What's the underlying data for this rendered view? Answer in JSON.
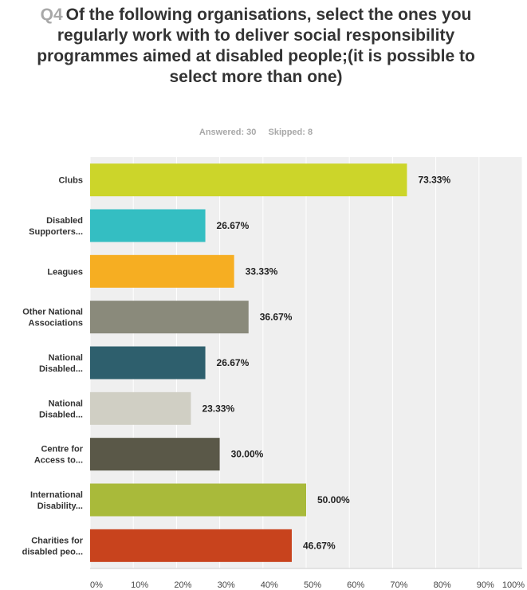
{
  "question": {
    "number": "Q4",
    "text": "Of the following organisations, select the ones you regularly work with to deliver social responsibility programmes aimed at disabled people;(it is possible to select more than one)"
  },
  "summary": {
    "answered": "Answered: 30",
    "skipped": "Skipped: 8"
  },
  "chart_data": {
    "type": "bar",
    "orientation": "horizontal",
    "categories": [
      "Clubs",
      "Disabled Supporters...",
      "Leagues",
      "Other National Associations",
      "National Disabled...",
      "National Disabled...",
      "Centre for Access to...",
      "International Disability...",
      "Charities for disabled peo..."
    ],
    "category_label_lines": [
      [
        "Clubs"
      ],
      [
        "Disabled",
        "Supporters..."
      ],
      [
        "Leagues"
      ],
      [
        "Other National",
        "Associations"
      ],
      [
        "National",
        "Disabled..."
      ],
      [
        "National",
        "Disabled..."
      ],
      [
        "Centre for",
        "Access to..."
      ],
      [
        "International",
        "Disability..."
      ],
      [
        "Charities for",
        "disabled peo..."
      ]
    ],
    "values": [
      73.33,
      26.67,
      33.33,
      36.67,
      26.67,
      23.33,
      30.0,
      50.0,
      46.67
    ],
    "value_labels": [
      "73.33%",
      "26.67%",
      "33.33%",
      "36.67%",
      "26.67%",
      "23.33%",
      "30.00%",
      "50.00%",
      "46.67%"
    ],
    "colors": [
      "#ccd52a",
      "#34bec2",
      "#f6ae22",
      "#8a8a7b",
      "#2e5f6d",
      "#d0cfc4",
      "#5a5848",
      "#a9ba3a",
      "#c8431d"
    ],
    "xlim": [
      0,
      100
    ],
    "x_ticks": [
      "0%",
      "10%",
      "20%",
      "30%",
      "40%",
      "50%",
      "60%",
      "70%",
      "80%",
      "90%",
      "100%"
    ],
    "grid": true,
    "plot_background": "#efefef",
    "grid_color": "#ffffff"
  }
}
